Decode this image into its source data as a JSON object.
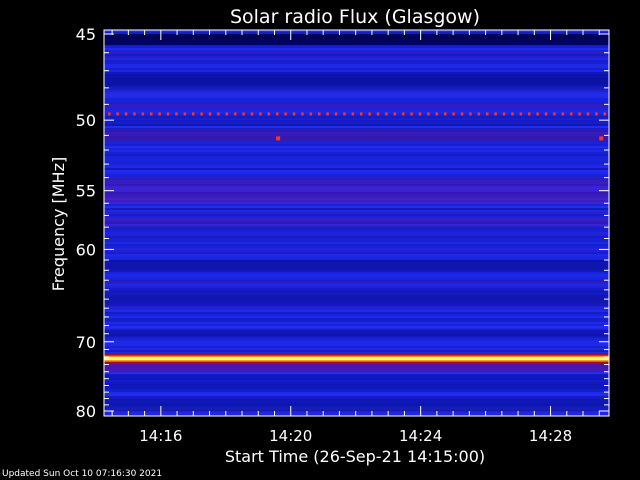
{
  "chart_data": {
    "type": "heatmap",
    "title": "Solar radio Flux (Glasgow)",
    "xlabel": "Start Time (26-Sep-21 14:15:00)",
    "ylabel": "Frequency [MHz]",
    "x_range_minutes": [
      14.25,
      29.8
    ],
    "y_range_mhz": [
      45,
      80
    ],
    "x_ticks": [
      {
        "label": "14:16",
        "minute": 16
      },
      {
        "label": "14:20",
        "minute": 20
      },
      {
        "label": "14:24",
        "minute": 24
      },
      {
        "label": "14:28",
        "minute": 28
      }
    ],
    "y_ticks": [
      {
        "label": "45",
        "mhz": 45
      },
      {
        "label": "50",
        "mhz": 50
      },
      {
        "label": "55",
        "mhz": 55
      },
      {
        "label": "60",
        "mhz": 60
      },
      {
        "label": "70",
        "mhz": 70
      },
      {
        "label": "80",
        "mhz": 80
      }
    ],
    "features": {
      "strong_interference_mhz": 72.2,
      "dotted_interference_mhz": 49.6,
      "colors": {
        "background_blue": "#1a24e0",
        "dark_band": "#0a0f9a",
        "purple_band": "#5a1ab0",
        "hot": "#ffff80",
        "dot": "#ff3322"
      }
    }
  },
  "footer": "Updated Sun Oct 10 07:16:30 2021"
}
